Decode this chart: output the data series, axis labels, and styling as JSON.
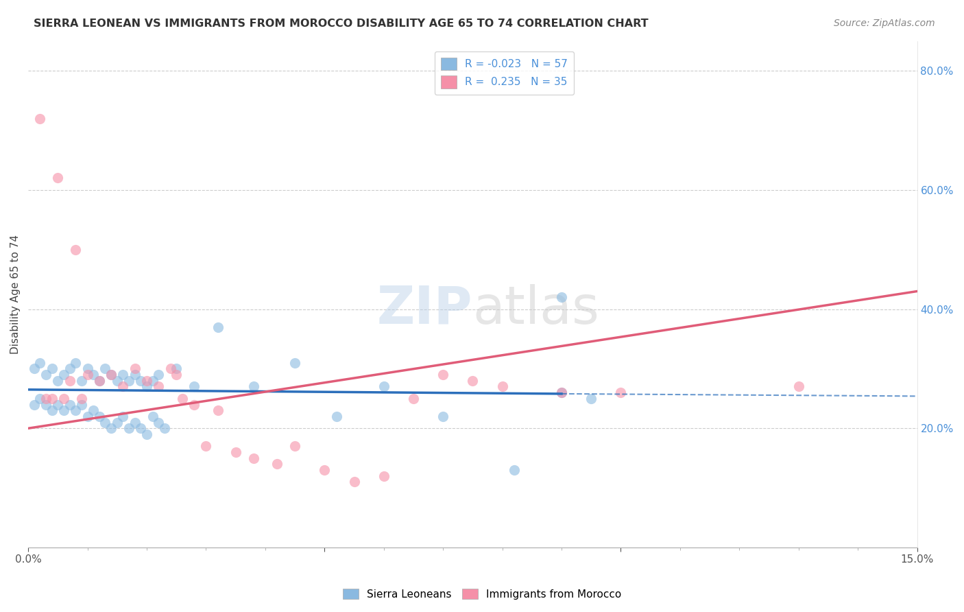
{
  "title": "SIERRA LEONEAN VS IMMIGRANTS FROM MOROCCO DISABILITY AGE 65 TO 74 CORRELATION CHART",
  "source": "Source: ZipAtlas.com",
  "ylabel": "Disability Age 65 to 74",
  "xlim": [
    0.0,
    0.15
  ],
  "ylim": [
    0.0,
    0.85
  ],
  "sierra_leonean_color": "#8ab9e0",
  "morocco_color": "#f590a8",
  "sierra_leonean_line_color": "#2c6fbb",
  "morocco_line_color": "#e05c78",
  "watermark_color": "#c8dff0",
  "background_color": "#ffffff",
  "grid_color": "#cccccc",
  "right_axis_color": "#4a90d9",
  "sl_R": -0.023,
  "sl_N": 57,
  "morocco_R": 0.235,
  "morocco_N": 35,
  "sl_line_x0": 0.0,
  "sl_line_x1": 0.09,
  "sl_line_y0": 0.265,
  "sl_line_y1": 0.258,
  "sl_line_dash_x0": 0.09,
  "sl_line_dash_x1": 0.15,
  "sl_line_dash_y0": 0.258,
  "sl_line_dash_y1": 0.254,
  "mo_line_x0": 0.0,
  "mo_line_x1": 0.15,
  "mo_line_y0": 0.2,
  "mo_line_y1": 0.43,
  "sl_scatter_x": [
    0.001,
    0.002,
    0.003,
    0.004,
    0.005,
    0.006,
    0.007,
    0.008,
    0.009,
    0.01,
    0.011,
    0.012,
    0.013,
    0.014,
    0.015,
    0.016,
    0.017,
    0.018,
    0.019,
    0.02,
    0.021,
    0.022,
    0.001,
    0.002,
    0.003,
    0.004,
    0.005,
    0.006,
    0.007,
    0.008,
    0.009,
    0.01,
    0.011,
    0.012,
    0.013,
    0.014,
    0.015,
    0.016,
    0.017,
    0.018,
    0.019,
    0.02,
    0.021,
    0.022,
    0.023,
    0.025,
    0.028,
    0.032,
    0.038,
    0.045,
    0.052,
    0.06,
    0.07,
    0.082,
    0.09,
    0.095,
    0.09
  ],
  "sl_scatter_y": [
    0.3,
    0.31,
    0.29,
    0.3,
    0.28,
    0.29,
    0.3,
    0.31,
    0.28,
    0.3,
    0.29,
    0.28,
    0.3,
    0.29,
    0.28,
    0.29,
    0.28,
    0.29,
    0.28,
    0.27,
    0.28,
    0.29,
    0.24,
    0.25,
    0.24,
    0.23,
    0.24,
    0.23,
    0.24,
    0.23,
    0.24,
    0.22,
    0.23,
    0.22,
    0.21,
    0.2,
    0.21,
    0.22,
    0.2,
    0.21,
    0.2,
    0.19,
    0.22,
    0.21,
    0.2,
    0.3,
    0.27,
    0.37,
    0.27,
    0.31,
    0.22,
    0.27,
    0.22,
    0.13,
    0.26,
    0.25,
    0.42
  ],
  "mo_scatter_x": [
    0.002,
    0.003,
    0.004,
    0.005,
    0.006,
    0.007,
    0.008,
    0.009,
    0.01,
    0.012,
    0.014,
    0.016,
    0.018,
    0.02,
    0.022,
    0.024,
    0.025,
    0.026,
    0.028,
    0.03,
    0.032,
    0.035,
    0.038,
    0.042,
    0.045,
    0.05,
    0.055,
    0.06,
    0.065,
    0.07,
    0.075,
    0.08,
    0.09,
    0.1,
    0.13
  ],
  "mo_scatter_y": [
    0.72,
    0.25,
    0.25,
    0.62,
    0.25,
    0.28,
    0.5,
    0.25,
    0.29,
    0.28,
    0.29,
    0.27,
    0.3,
    0.28,
    0.27,
    0.3,
    0.29,
    0.25,
    0.24,
    0.17,
    0.23,
    0.16,
    0.15,
    0.14,
    0.17,
    0.13,
    0.11,
    0.12,
    0.25,
    0.29,
    0.28,
    0.27,
    0.26,
    0.26,
    0.27
  ]
}
